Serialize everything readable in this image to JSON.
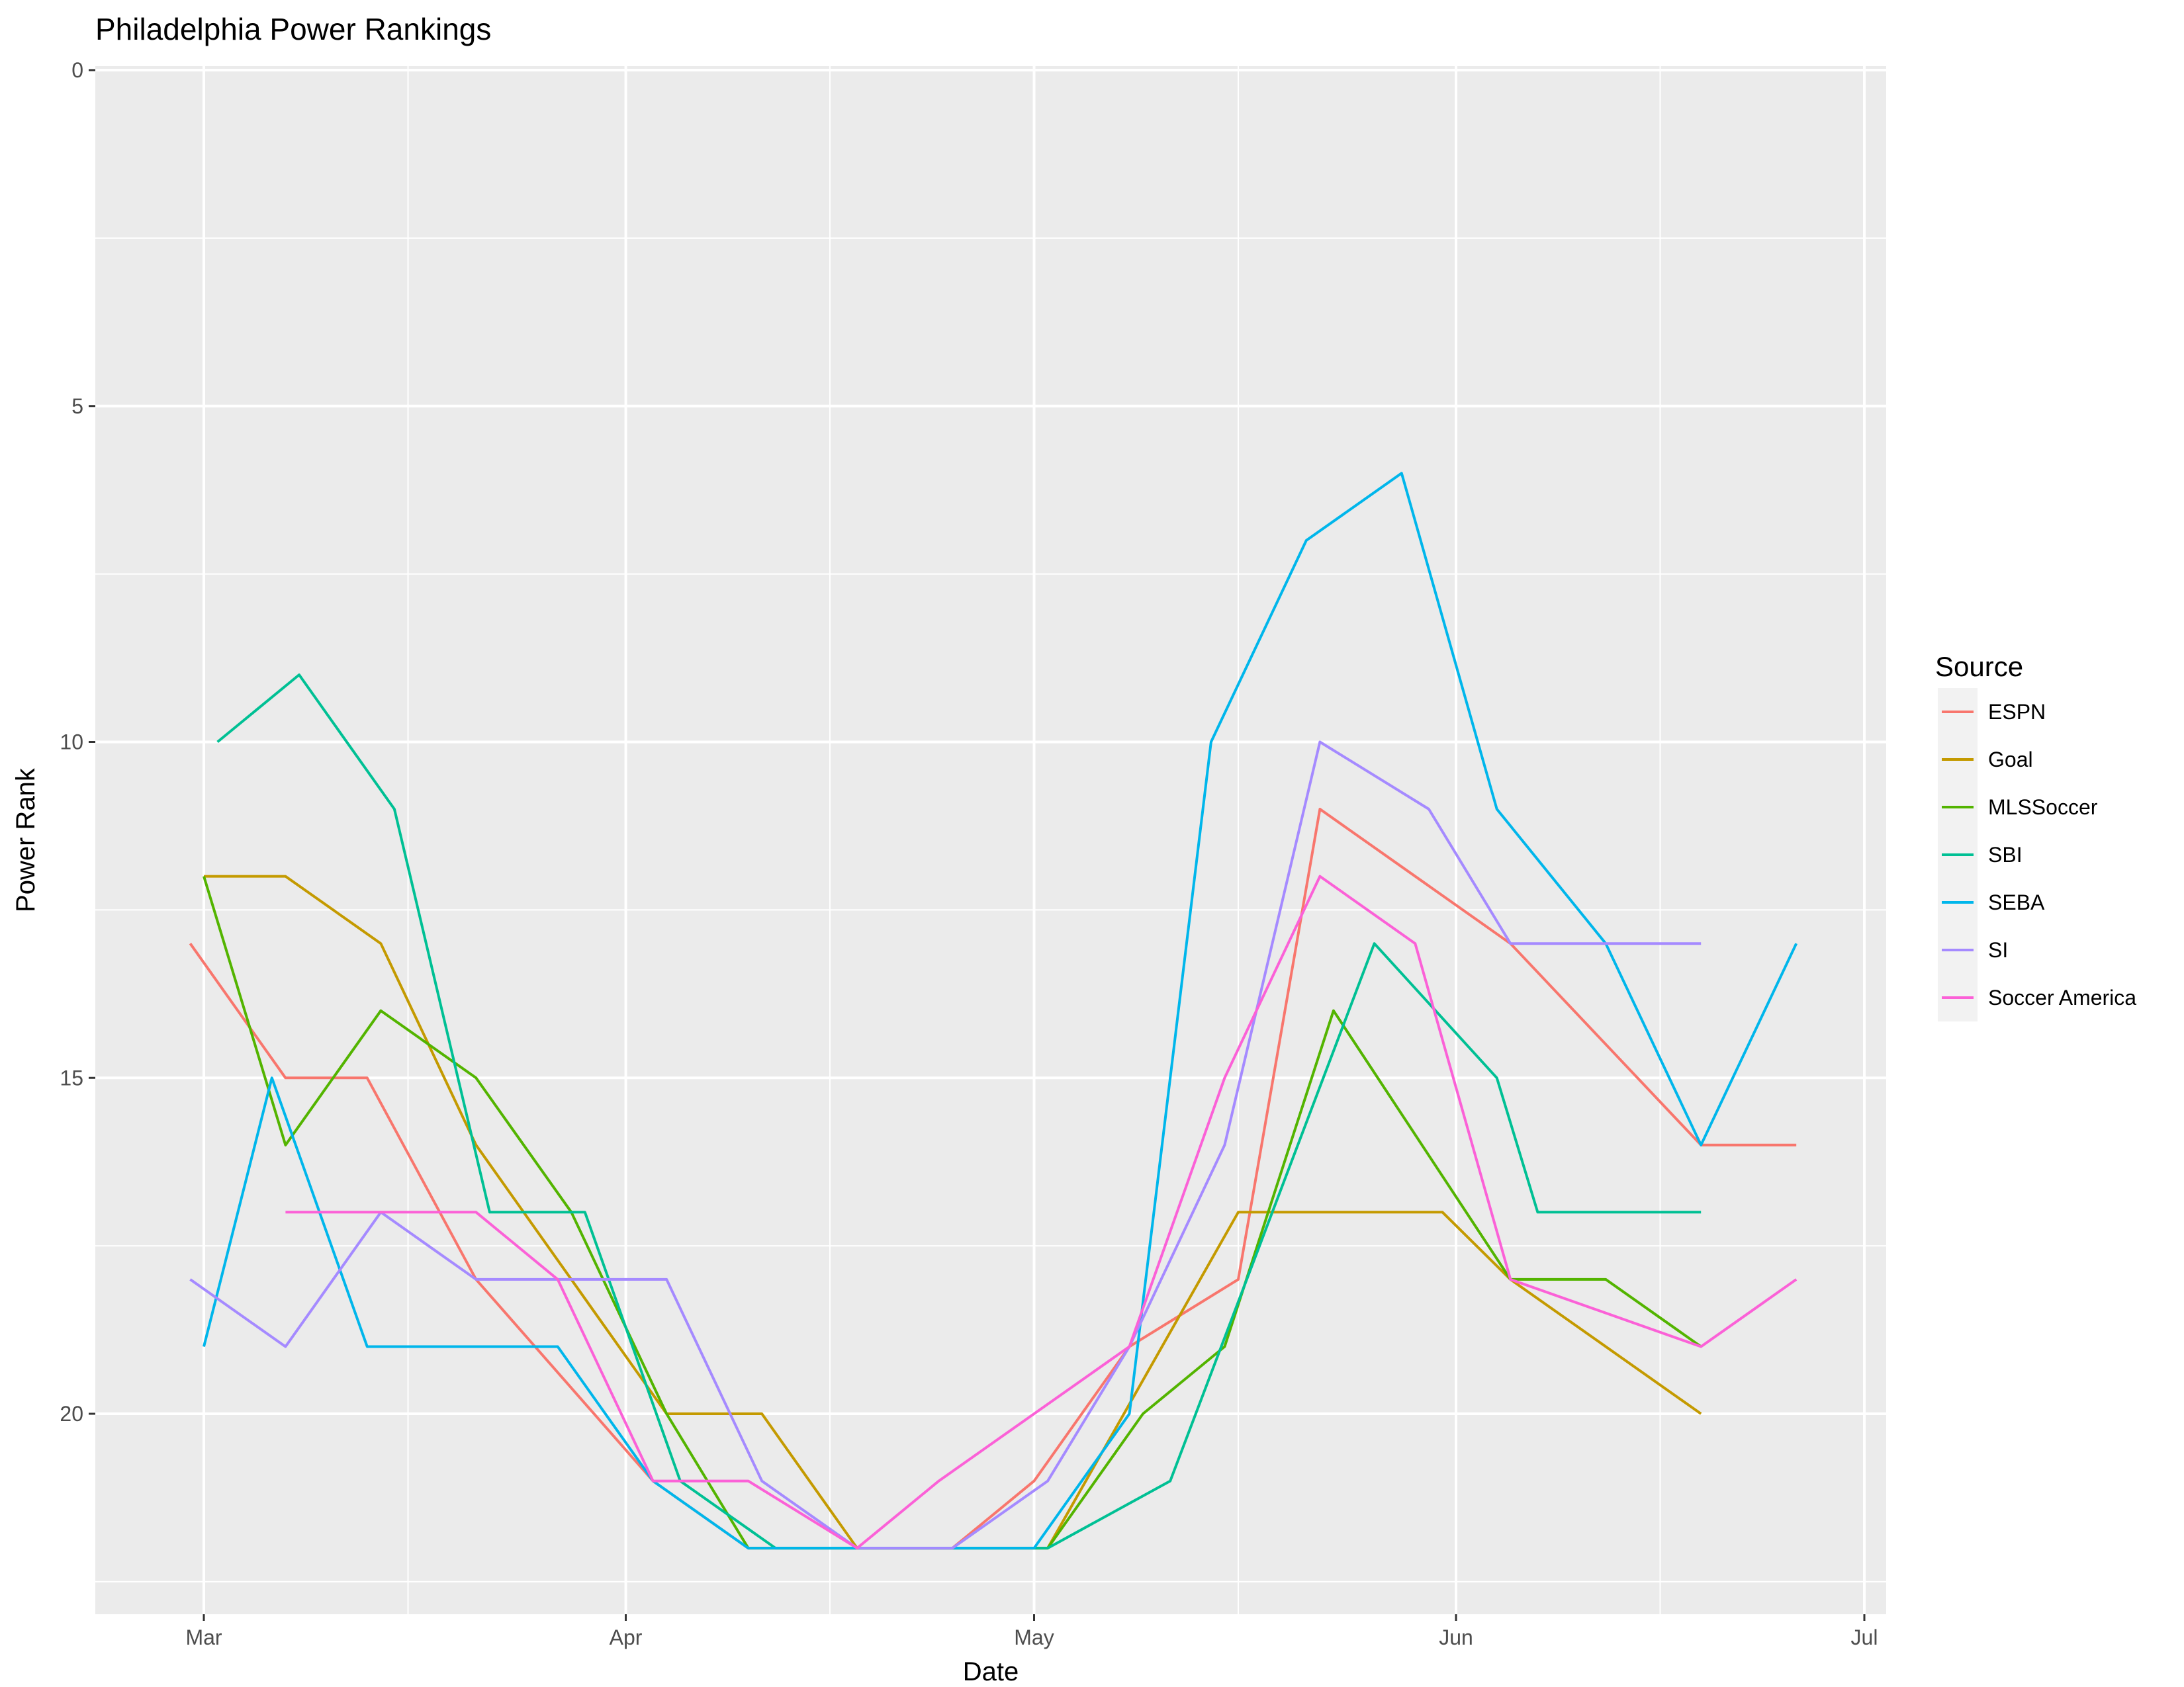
{
  "chart_data": {
    "type": "line",
    "title": "Philadelphia Power Rankings",
    "xlabel": "Date",
    "ylabel": "Power Rank",
    "x_axis": {
      "type": "date",
      "range": [
        "2016-02-22",
        "2016-07-01"
      ],
      "ticks": [
        {
          "date": "2016-03-01",
          "label": "Mar"
        },
        {
          "date": "2016-04-01",
          "label": "Apr"
        },
        {
          "date": "2016-05-01",
          "label": "May"
        },
        {
          "date": "2016-06-01",
          "label": "Jun"
        },
        {
          "date": "2016-07-01",
          "label": "Jul"
        }
      ],
      "minor_ticks": [
        "2016-03-16",
        "2016-04-16",
        "2016-05-16",
        "2016-06-16"
      ]
    },
    "y_axis": {
      "reversed": true,
      "range": [
        0,
        23
      ],
      "ticks": [
        0,
        5,
        10,
        15,
        20
      ],
      "minor_ticks": [
        2.5,
        7.5,
        12.5,
        17.5,
        22.5
      ]
    },
    "grid": true,
    "legend": {
      "title": "Source",
      "position": "right"
    },
    "series": [
      {
        "name": "ESPN",
        "color": "#F8766D",
        "points": [
          [
            "2016-02-29",
            13
          ],
          [
            "2016-03-07",
            15
          ],
          [
            "2016-03-13",
            15
          ],
          [
            "2016-03-21",
            18
          ],
          [
            "2016-04-03",
            21
          ],
          [
            "2016-04-10",
            22
          ],
          [
            "2016-04-18",
            22
          ],
          [
            "2016-04-25",
            22
          ],
          [
            "2016-05-01",
            21
          ],
          [
            "2016-05-08",
            19
          ],
          [
            "2016-05-16",
            18
          ],
          [
            "2016-05-22",
            11
          ],
          [
            "2016-06-05",
            13
          ],
          [
            "2016-06-19",
            16
          ],
          [
            "2016-06-26",
            16
          ]
        ]
      },
      {
        "name": "Goal",
        "color": "#C49A00",
        "points": [
          [
            "2016-03-01",
            12
          ],
          [
            "2016-03-07",
            12
          ],
          [
            "2016-03-14",
            13
          ],
          [
            "2016-03-21",
            16
          ],
          [
            "2016-04-04",
            20
          ],
          [
            "2016-04-11",
            20
          ],
          [
            "2016-04-18",
            22
          ],
          [
            "2016-04-26",
            22
          ],
          [
            "2016-05-02",
            22
          ],
          [
            "2016-05-16",
            17
          ],
          [
            "2016-05-31",
            17
          ],
          [
            "2016-06-05",
            18
          ],
          [
            "2016-06-19",
            20
          ]
        ]
      },
      {
        "name": "MLSSoccer",
        "color": "#53B400",
        "points": [
          [
            "2016-03-01",
            12
          ],
          [
            "2016-03-07",
            16
          ],
          [
            "2016-03-14",
            14
          ],
          [
            "2016-03-21",
            15
          ],
          [
            "2016-03-28",
            17
          ],
          [
            "2016-04-04",
            20
          ],
          [
            "2016-04-10",
            22
          ],
          [
            "2016-04-18",
            22
          ],
          [
            "2016-04-25",
            22
          ],
          [
            "2016-05-02",
            22
          ],
          [
            "2016-05-09",
            20
          ],
          [
            "2016-05-15",
            19
          ],
          [
            "2016-05-23",
            14
          ],
          [
            "2016-06-05",
            18
          ],
          [
            "2016-06-12",
            18
          ],
          [
            "2016-06-19",
            19
          ]
        ]
      },
      {
        "name": "SBI",
        "color": "#00C094",
        "points": [
          [
            "2016-03-02",
            10
          ],
          [
            "2016-03-08",
            9
          ],
          [
            "2016-03-15",
            11
          ],
          [
            "2016-03-22",
            17
          ],
          [
            "2016-03-29",
            17
          ],
          [
            "2016-04-05",
            21
          ],
          [
            "2016-04-12",
            22
          ],
          [
            "2016-04-18",
            22
          ],
          [
            "2016-05-02",
            22
          ],
          [
            "2016-05-11",
            21
          ],
          [
            "2016-05-26",
            13
          ],
          [
            "2016-06-04",
            15
          ],
          [
            "2016-06-07",
            17
          ],
          [
            "2016-06-19",
            17
          ]
        ]
      },
      {
        "name": "SEBA",
        "color": "#00B6EB",
        "points": [
          [
            "2016-03-01",
            19
          ],
          [
            "2016-03-06",
            15
          ],
          [
            "2016-03-13",
            19
          ],
          [
            "2016-03-27",
            19
          ],
          [
            "2016-04-03",
            21
          ],
          [
            "2016-04-10",
            22
          ],
          [
            "2016-05-01",
            22
          ],
          [
            "2016-05-08",
            20
          ],
          [
            "2016-05-14",
            10
          ],
          [
            "2016-05-21",
            7
          ],
          [
            "2016-05-28",
            6
          ],
          [
            "2016-06-04",
            11
          ],
          [
            "2016-06-12",
            13
          ],
          [
            "2016-06-19",
            16
          ],
          [
            "2016-06-26",
            13
          ]
        ]
      },
      {
        "name": "SI",
        "color": "#A58AFF",
        "points": [
          [
            "2016-02-29",
            18
          ],
          [
            "2016-03-07",
            19
          ],
          [
            "2016-03-14",
            17
          ],
          [
            "2016-03-21",
            18
          ],
          [
            "2016-04-04",
            18
          ],
          [
            "2016-04-11",
            21
          ],
          [
            "2016-04-18",
            22
          ],
          [
            "2016-04-25",
            22
          ],
          [
            "2016-05-02",
            21
          ],
          [
            "2016-05-08",
            19
          ],
          [
            "2016-05-15",
            16
          ],
          [
            "2016-05-22",
            10
          ],
          [
            "2016-05-30",
            11
          ],
          [
            "2016-06-05",
            13
          ],
          [
            "2016-06-19",
            13
          ]
        ]
      },
      {
        "name": "Soccer America",
        "color": "#FB61D7",
        "points": [
          [
            "2016-03-07",
            17
          ],
          [
            "2016-03-21",
            17
          ],
          [
            "2016-03-27",
            18
          ],
          [
            "2016-04-03",
            21
          ],
          [
            "2016-04-10",
            21
          ],
          [
            "2016-04-18",
            22
          ],
          [
            "2016-04-24",
            21
          ],
          [
            "2016-05-01",
            20
          ],
          [
            "2016-05-08",
            19
          ],
          [
            "2016-05-15",
            15
          ],
          [
            "2016-05-22",
            12
          ],
          [
            "2016-05-29",
            13
          ],
          [
            "2016-06-05",
            18
          ],
          [
            "2016-06-19",
            19
          ],
          [
            "2016-06-26",
            18
          ]
        ]
      }
    ]
  }
}
